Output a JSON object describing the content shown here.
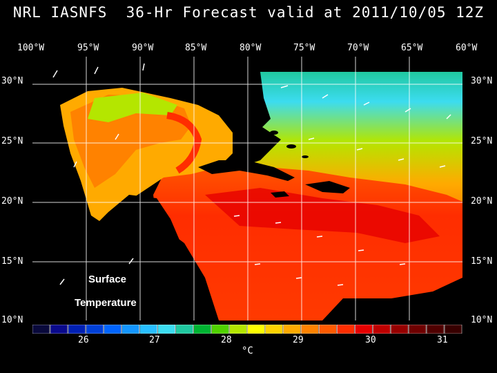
{
  "title": "NRL IASNFS  36-Hr Forecast valid at 2011/10/05 12Z",
  "lon_labels": [
    "100°W",
    "95°W",
    "90°W",
    "85°W",
    "80°W",
    "75°W",
    "70°W",
    "65°W",
    "60°W"
  ],
  "lat_labels": [
    "30°N",
    "25°N",
    "20°N",
    "15°N",
    "10°N"
  ],
  "overlay": {
    "line1": "Surface",
    "line2": "Temperature"
  },
  "colorbar": {
    "ticks": [
      "26",
      "27",
      "28",
      "29",
      "30",
      "31"
    ],
    "unit": "°C",
    "colors": [
      "#0a0a3c",
      "#0a0a8c",
      "#0020b4",
      "#0040d8",
      "#0064ff",
      "#1496ff",
      "#28beff",
      "#3cdcf0",
      "#20c8a0",
      "#00b432",
      "#50d200",
      "#b4e600",
      "#ffff00",
      "#ffd200",
      "#ffaa00",
      "#ff8200",
      "#ff5a00",
      "#ff2d00",
      "#e60000",
      "#be0000",
      "#960000",
      "#6e0000",
      "#500000",
      "#380000"
    ]
  }
}
